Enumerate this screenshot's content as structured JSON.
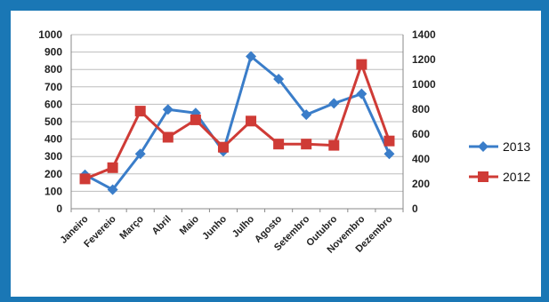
{
  "chart_data": {
    "type": "line",
    "title": "",
    "categories": [
      "Janeiro",
      "Fevereio",
      "Março",
      "Abril",
      "Maio",
      "Junho",
      "Julho",
      "Agosto",
      "Setembro",
      "Outubro",
      "Novembro",
      "Dezembro"
    ],
    "series": [
      {
        "name": "2013",
        "axis": "left",
        "color": "#3a7dc9",
        "marker": "diamond",
        "values": [
          195,
          110,
          315,
          570,
          550,
          330,
          875,
          745,
          540,
          605,
          660,
          315
        ]
      },
      {
        "name": "2012",
        "axis": "right",
        "color": "#cf3b36",
        "marker": "square",
        "values": [
          240,
          330,
          785,
          575,
          715,
          495,
          705,
          520,
          520,
          510,
          1160,
          545
        ]
      }
    ],
    "y_left": {
      "min": 0,
      "max": 1000,
      "ticks": [
        "0",
        "100",
        "200",
        "300",
        "400",
        "500",
        "600",
        "700",
        "800",
        "900",
        "1000"
      ]
    },
    "y_right": {
      "min": 0,
      "max": 1400,
      "ticks": [
        "0",
        "200",
        "400",
        "600",
        "800",
        "1000",
        "1200",
        "1400"
      ]
    },
    "grid": "horizontal",
    "legend": {
      "position": "right",
      "items": [
        "2013",
        "2012"
      ]
    }
  }
}
